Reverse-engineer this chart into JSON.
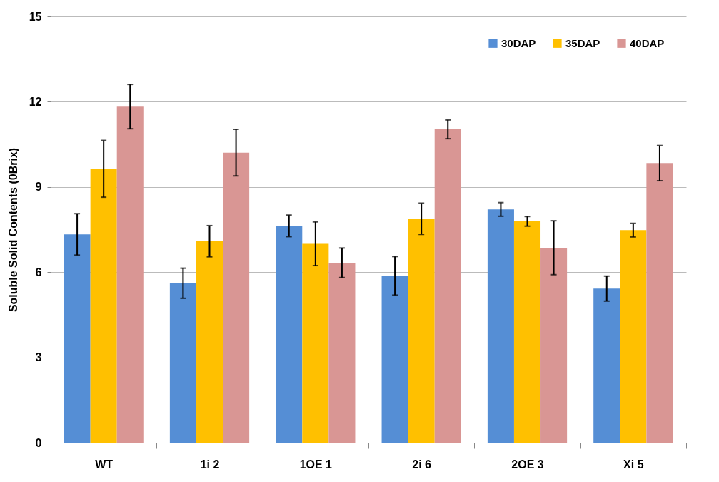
{
  "chart_data": {
    "type": "bar",
    "ylabel": "Soluble Solid Contents (0Brix)",
    "categories": [
      "WT",
      "1i 2",
      "1OE 1",
      "2i 6",
      "2OE 3",
      "Xi 5"
    ],
    "series": [
      {
        "name": "30DAP",
        "color": "#558ed5",
        "values": [
          7.33,
          5.61,
          7.63,
          5.87,
          8.21,
          5.42
        ],
        "errors": [
          0.73,
          0.53,
          0.38,
          0.68,
          0.24,
          0.44
        ]
      },
      {
        "name": "35DAP",
        "color": "#ffc000",
        "values": [
          9.64,
          7.09,
          7.0,
          7.88,
          7.79,
          7.48
        ],
        "errors": [
          1.0,
          0.55,
          0.77,
          0.55,
          0.17,
          0.24
        ]
      },
      {
        "name": "40DAP",
        "color": "#d99694",
        "values": [
          11.83,
          10.21,
          6.33,
          11.03,
          6.86,
          9.84
        ],
        "errors": [
          0.78,
          0.82,
          0.52,
          0.33,
          0.95,
          0.62
        ]
      }
    ],
    "ylim": [
      0,
      15
    ],
    "yticks": [
      0,
      3,
      6,
      9,
      12,
      15
    ],
    "grid": "y",
    "legend": "top right"
  }
}
